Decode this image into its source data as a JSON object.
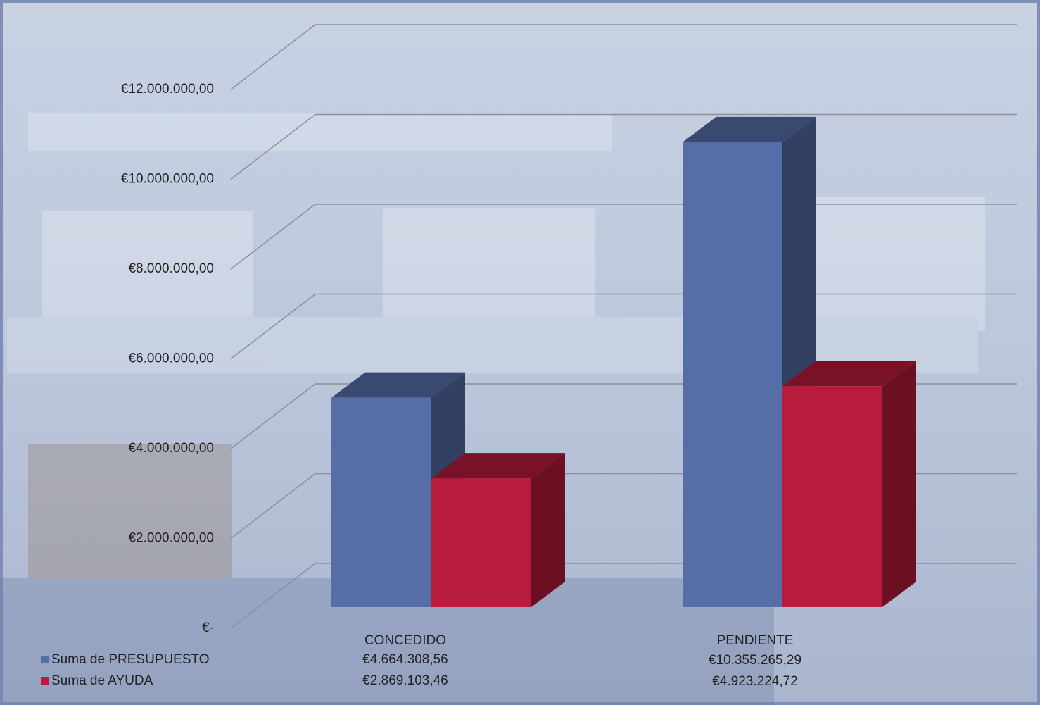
{
  "chart_data": {
    "type": "bar3d",
    "categories": [
      "CONCEDIDO",
      "PENDIENTE"
    ],
    "series": [
      {
        "name": "Suma de PRESUPUESTO",
        "color": "#566ea8",
        "values": [
          4664308.56,
          10355265.29
        ],
        "value_labels": [
          "€4.664.308,56",
          "€10.355.265,29"
        ]
      },
      {
        "name": "Suma de AYUDA",
        "color": "#b81c3c",
        "values": [
          2869103.46,
          4923224.72
        ],
        "value_labels": [
          "€2.869.103,46",
          "€4.923.224,72"
        ]
      }
    ],
    "ylim": [
      0,
      12000000
    ],
    "yticks": [
      {
        "value": 0,
        "label": "€-"
      },
      {
        "value": 2000000,
        "label": "€2.000.000,00"
      },
      {
        "value": 4000000,
        "label": "€4.000.000,00"
      },
      {
        "value": 6000000,
        "label": "€6.000.000,00"
      },
      {
        "value": 8000000,
        "label": "€8.000.000,00"
      },
      {
        "value": 10000000,
        "label": "€10.000.000,00"
      },
      {
        "value": 12000000,
        "label": "€12.000.000,00"
      }
    ],
    "grid": true
  }
}
